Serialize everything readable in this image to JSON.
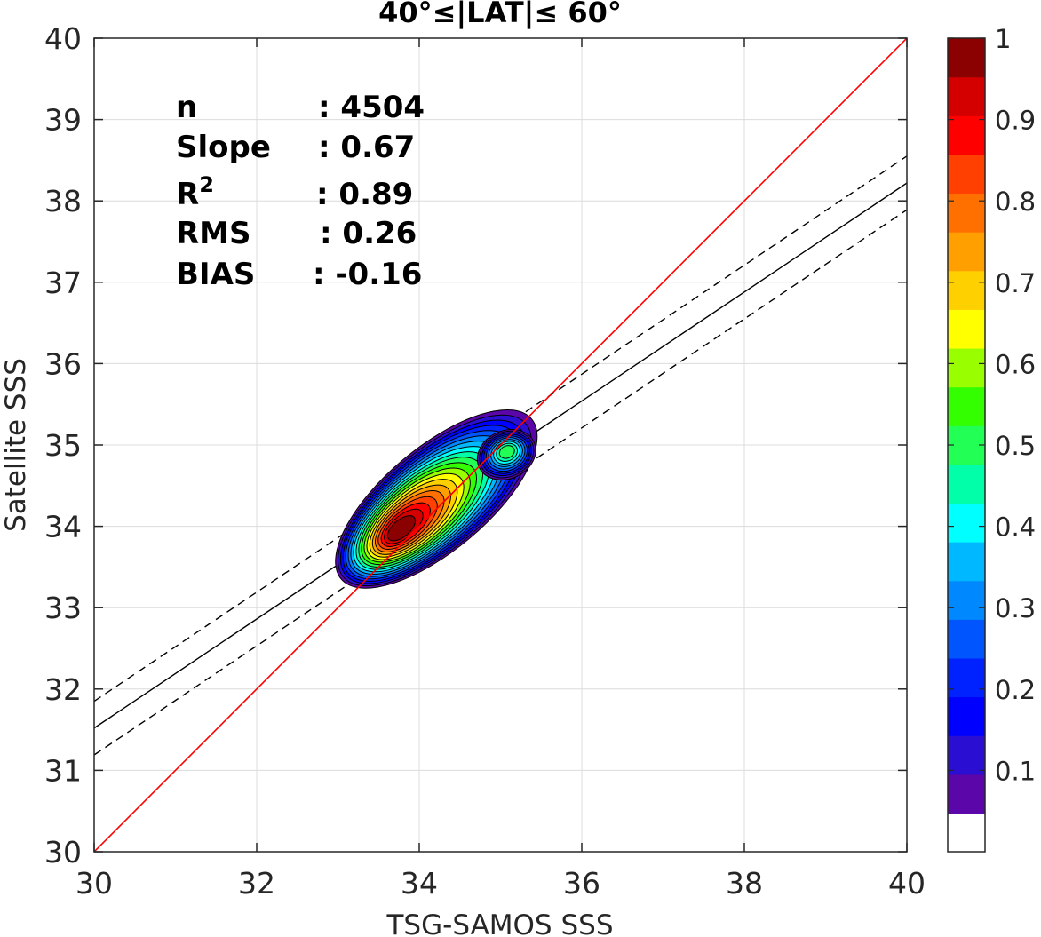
{
  "chart_data": {
    "type": "contour-scatter",
    "title": "40°≤|LAT|≤ 60°",
    "xlabel": "TSG-SAMOS SSS",
    "ylabel": "Satellite SSS",
    "xlim": [
      30,
      40
    ],
    "ylim": [
      30,
      40
    ],
    "xticks": [
      "30",
      "32",
      "34",
      "36",
      "38",
      "40"
    ],
    "yticks": [
      "30",
      "31",
      "32",
      "33",
      "34",
      "35",
      "36",
      "37",
      "38",
      "39",
      "40"
    ],
    "grid": true,
    "stats": [
      {
        "key": "n",
        "sup": "",
        "value": ": 4504"
      },
      {
        "key": "Slope",
        "sup": "",
        "value": ": 0.67"
      },
      {
        "key": "R",
        "sup": "2",
        "value": ": 0.89"
      },
      {
        "key": "RMS",
        "sup": "",
        "value": ": 0.26"
      },
      {
        "key": "BIAS",
        "sup": "",
        "value": ": -0.16"
      }
    ],
    "one_to_one_line": {
      "x": [
        30,
        40
      ],
      "y": [
        30,
        40
      ],
      "color": "#ff0000"
    },
    "regression_line": {
      "x": [
        30,
        40
      ],
      "y": [
        31.52,
        38.22
      ],
      "color": "#000000"
    },
    "confidence_upper": {
      "x": [
        30,
        40
      ],
      "y": [
        31.85,
        38.55
      ],
      "color": "#000000",
      "style": "dashed"
    },
    "confidence_lower": {
      "x": [
        30,
        40
      ],
      "y": [
        31.19,
        37.89
      ],
      "color": "#000000",
      "style": "dashed"
    },
    "density_peaks": [
      {
        "x": 33.75,
        "y": 33.95,
        "max": 1.0
      },
      {
        "x": 35.08,
        "y": 34.92,
        "max": 0.48
      }
    ],
    "colorbar": {
      "range": [
        0,
        1
      ],
      "ticks": [
        "0.1",
        "0.2",
        "0.3",
        "0.4",
        "0.5",
        "0.6",
        "0.7",
        "0.8",
        "0.9",
        "1"
      ],
      "colors": [
        "#ffffff",
        "#5b06a8",
        "#2a0fd2",
        "#0000ff",
        "#0022ff",
        "#0055ff",
        "#0088ff",
        "#00b8ff",
        "#00ffff",
        "#00ffa8",
        "#22ff55",
        "#33ff00",
        "#99ff00",
        "#ffff00",
        "#ffd000",
        "#ffa000",
        "#ff7000",
        "#ff4000",
        "#ff0000",
        "#d40000",
        "#8b0000"
      ]
    }
  }
}
